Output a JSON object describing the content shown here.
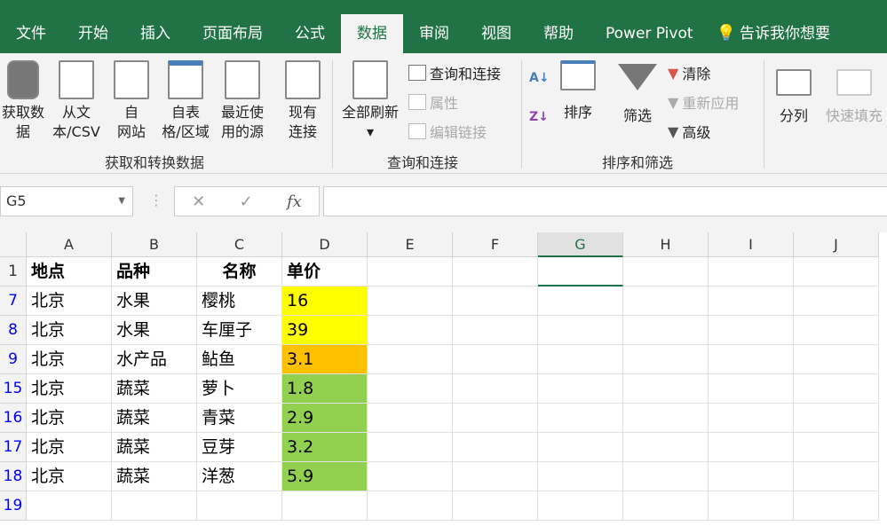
{
  "tabs": [
    "文件",
    "开始",
    "插入",
    "页面布局",
    "公式",
    "数据",
    "审阅",
    "视图",
    "帮助",
    "Power Pivot",
    "告诉我你想要"
  ],
  "active_tab": "数据",
  "ribbon": {
    "get_data": "获取数",
    "get_data2": "据",
    "from_text": "从文",
    "from_text2": "本/CSV",
    "from_web": "自",
    "from_web2": "网站",
    "from_table": "自表",
    "from_table2": "格/区域",
    "recent": "最近使",
    "recent2": "用的源",
    "existing": "现有",
    "existing2": "连接",
    "group1": "获取和转换数据",
    "refresh_all": "全部刷新",
    "queries": "查询和连接",
    "properties": "属性",
    "edit_links": "编辑链接",
    "group2": "查询和连接",
    "sort": "排序",
    "filter": "筛选",
    "clear": "清除",
    "reapply": "重新应用",
    "advanced": "高级",
    "group3": "排序和筛选",
    "text_to_columns": "分列",
    "flash_fill": "快速填充"
  },
  "formula_bar": {
    "name_box": "G5",
    "fx": "fx",
    "cancel": "✕",
    "enter": "✓",
    "formula": ""
  },
  "columns": [
    "A",
    "B",
    "C",
    "D",
    "E",
    "F",
    "G",
    "H",
    "I",
    "J"
  ],
  "selected_column": "G",
  "header_row": {
    "row": "1",
    "cells": [
      "地点",
      "品种",
      "名称",
      "单价"
    ]
  },
  "rows": [
    {
      "row": "7",
      "cells": [
        "北京",
        "水果",
        "樱桃",
        "16"
      ],
      "fill": "#ffff00"
    },
    {
      "row": "8",
      "cells": [
        "北京",
        "水果",
        "车厘子",
        "39"
      ],
      "fill": "#ffff00"
    },
    {
      "row": "9",
      "cells": [
        "北京",
        "水产品",
        "鲇鱼",
        "3.1"
      ],
      "fill": "#ffc000"
    },
    {
      "row": "15",
      "cells": [
        "北京",
        "蔬菜",
        "萝卜",
        "1.8"
      ],
      "fill": "#92d050"
    },
    {
      "row": "16",
      "cells": [
        "北京",
        "蔬菜",
        "青菜",
        "2.9"
      ],
      "fill": "#92d050"
    },
    {
      "row": "17",
      "cells": [
        "北京",
        "蔬菜",
        "豆芽",
        "3.2"
      ],
      "fill": "#92d050"
    },
    {
      "row": "18",
      "cells": [
        "北京",
        "蔬菜",
        "洋葱",
        "5.9"
      ],
      "fill": "#92d050"
    },
    {
      "row": "19",
      "cells": [
        "",
        "",
        "",
        ""
      ],
      "fill": ""
    }
  ],
  "colors": {
    "accent": "#217346",
    "filtered_row_number": "#0000ff"
  }
}
